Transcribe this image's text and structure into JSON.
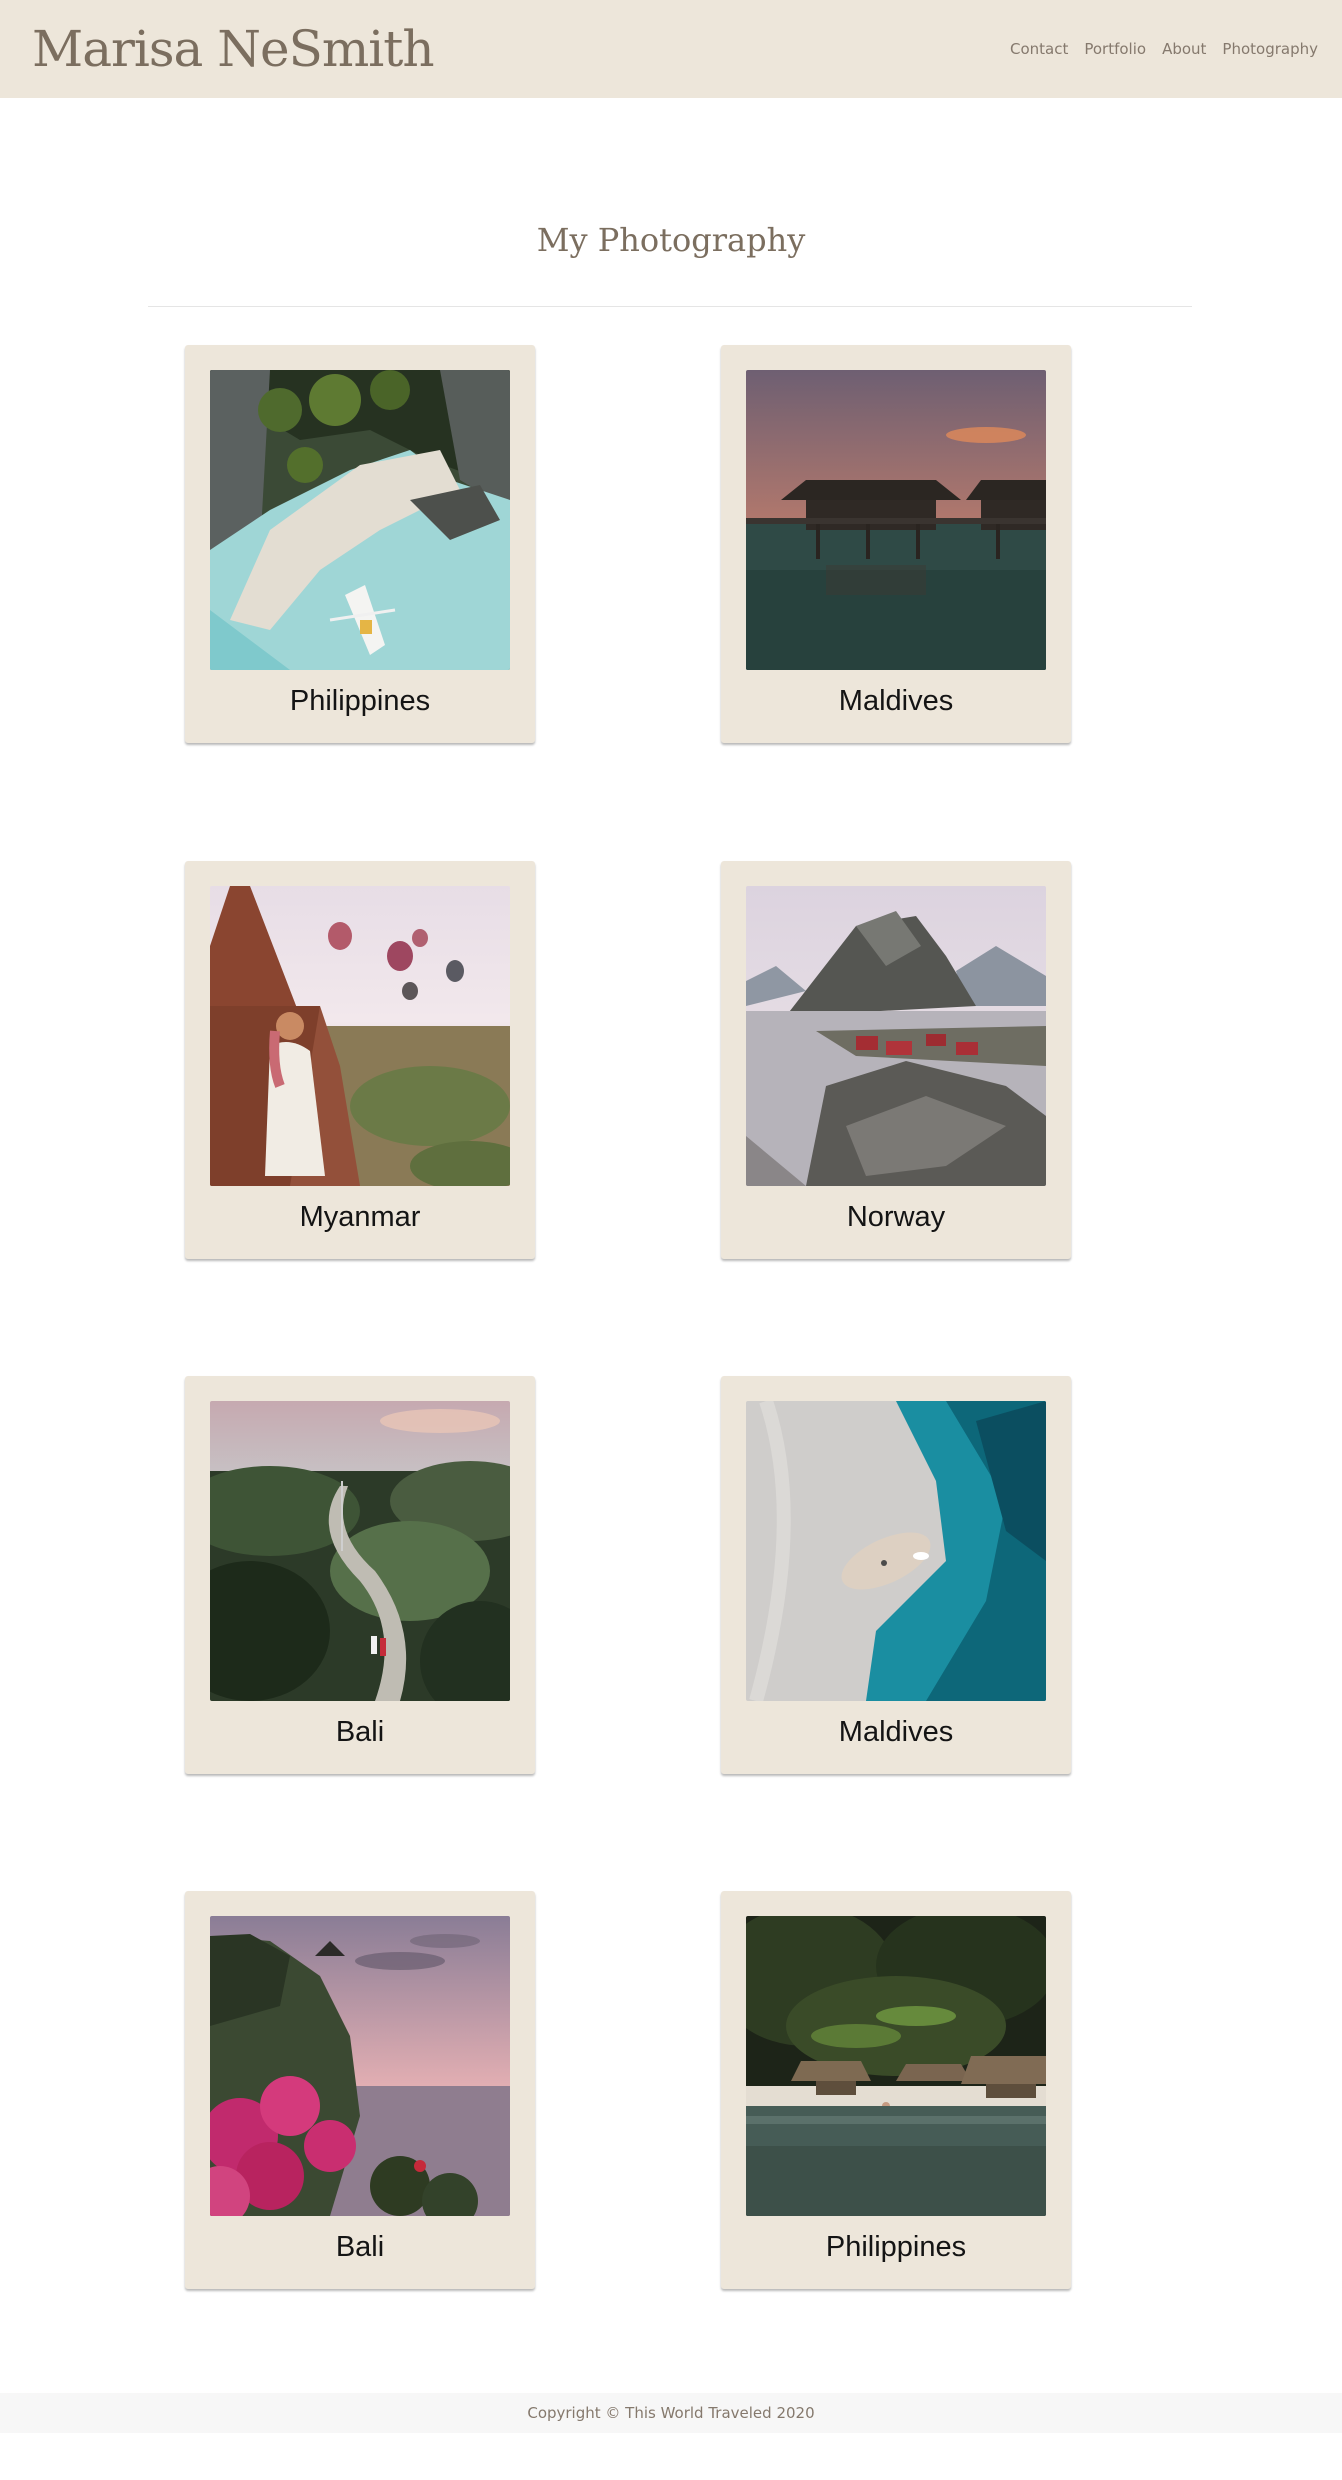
{
  "header": {
    "brand": "Marisa NeSmith",
    "nav": [
      "Contact",
      "Portfolio",
      "About",
      "Photography"
    ]
  },
  "main": {
    "title": "My Photography",
    "gallery": [
      {
        "caption": "Philippines",
        "scene": "aerial-beach-boat"
      },
      {
        "caption": "Maldives",
        "scene": "overwater-bungalows-sunset"
      },
      {
        "caption": "Myanmar",
        "scene": "temples-hot-air-balloons"
      },
      {
        "caption": "Norway",
        "scene": "mountain-red-cabins"
      },
      {
        "caption": "Bali",
        "scene": "jungle-road-couple"
      },
      {
        "caption": "Maldives",
        "scene": "aerial-sandbank-turquoise"
      },
      {
        "caption": "Bali",
        "scene": "cliff-bougainvillea-sunset"
      },
      {
        "caption": "Philippines",
        "scene": "palm-beach-huts"
      }
    ]
  },
  "footer": {
    "copyright": "Copyright © This World Traveled 2020"
  },
  "colors": {
    "header_bg": "#ede6da",
    "card_bg": "#ede6da",
    "brand_text": "#7b6e5f",
    "nav_text": "#85796d",
    "caption_text": "#141414",
    "footer_bg": "#f7f7f7"
  }
}
